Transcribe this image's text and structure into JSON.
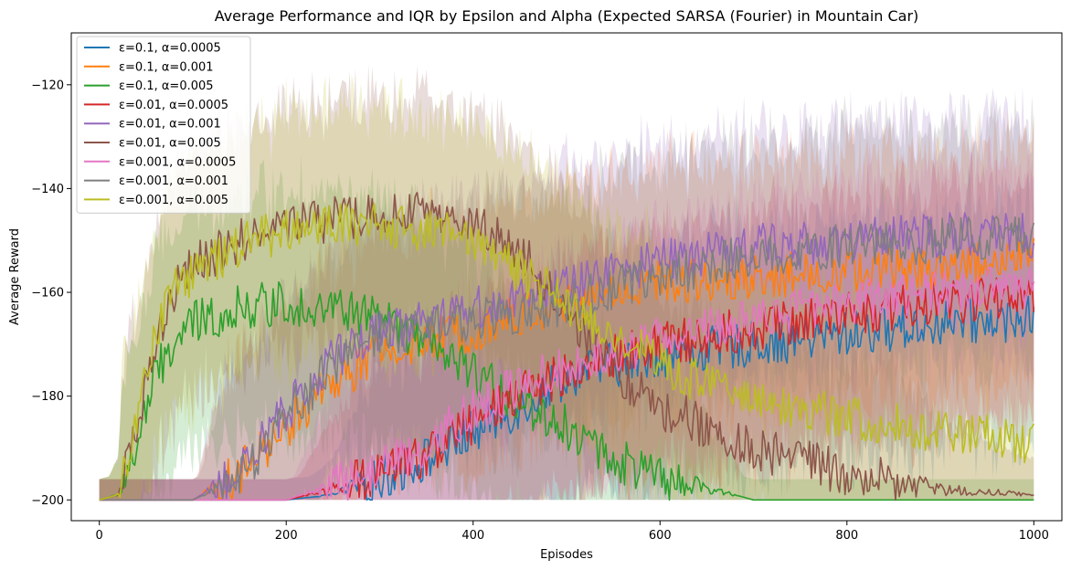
{
  "chart_data": {
    "type": "line",
    "title": "Average Performance and IQR by Epsilon and Alpha (Expected SARSA (Fourier) in Mountain Car)",
    "xlabel": "Episodes",
    "ylabel": "Average Reward",
    "xlim": [
      -30,
      1030
    ],
    "ylim": [
      -204,
      -110
    ],
    "xticks": [
      0,
      200,
      400,
      600,
      800,
      1000
    ],
    "yticks": [
      -200,
      -180,
      -160,
      -140,
      -120
    ],
    "xtick_labels": [
      "0",
      "200",
      "400",
      "600",
      "800",
      "1000"
    ],
    "ytick_labels": [
      "−200",
      "−180",
      "−160",
      "−140",
      "−120"
    ],
    "grid": false,
    "legend_position": "upper-left",
    "iqr_bands": true,
    "series": [
      {
        "name": "ε=0.1, α=0.0005",
        "color": "#1f77b4",
        "x": [
          0,
          100,
          200,
          250,
          300,
          350,
          400,
          450,
          500,
          600,
          700,
          800,
          900,
          1000
        ],
        "y": [
          -200,
          -200,
          -200,
          -199,
          -196,
          -192,
          -187,
          -182,
          -176,
          -172,
          -170,
          -168,
          -166,
          -165
        ]
      },
      {
        "name": "ε=0.1, α=0.001",
        "color": "#ff7f0e",
        "x": [
          0,
          100,
          150,
          200,
          250,
          300,
          400,
          500,
          600,
          700,
          800,
          900,
          1000
        ],
        "y": [
          -200,
          -200,
          -195,
          -186,
          -177,
          -172,
          -167,
          -162,
          -158,
          -157,
          -156,
          -155,
          -153
        ]
      },
      {
        "name": "ε=0.1, α=0.005",
        "color": "#2ca02c",
        "x": [
          0,
          20,
          40,
          60,
          80,
          100,
          150,
          200,
          250,
          300,
          350,
          400,
          450,
          500,
          550,
          600,
          650,
          680,
          700,
          1000
        ],
        "y": [
          -200,
          -199,
          -190,
          -176,
          -170,
          -166,
          -163,
          -162,
          -163,
          -165,
          -170,
          -176,
          -181,
          -186,
          -192,
          -196,
          -198,
          -199,
          -200,
          -200
        ]
      },
      {
        "name": "ε=0.01, α=0.0005",
        "color": "#d62728",
        "x": [
          0,
          100,
          200,
          250,
          300,
          350,
          400,
          450,
          500,
          600,
          700,
          800,
          900,
          1000
        ],
        "y": [
          -200,
          -200,
          -200,
          -198,
          -195,
          -191,
          -185,
          -180,
          -175,
          -170,
          -167,
          -164,
          -162,
          -161
        ]
      },
      {
        "name": "ε=0.01, α=0.001",
        "color": "#9467bd",
        "x": [
          0,
          100,
          150,
          200,
          250,
          300,
          400,
          500,
          600,
          700,
          800,
          900,
          1000
        ],
        "y": [
          -200,
          -200,
          -195,
          -183,
          -173,
          -167,
          -163,
          -159,
          -154,
          -151,
          -150,
          -149,
          -149
        ]
      },
      {
        "name": "ε=0.01, α=0.005",
        "color": "#8c564b",
        "x": [
          0,
          20,
          40,
          60,
          80,
          100,
          150,
          200,
          250,
          300,
          350,
          400,
          450,
          500,
          550,
          600,
          700,
          800,
          900,
          1000
        ],
        "y": [
          -200,
          -199,
          -188,
          -170,
          -160,
          -155,
          -150,
          -147,
          -146,
          -145,
          -145,
          -147,
          -152,
          -164,
          -175,
          -182,
          -190,
          -195,
          -198,
          -199
        ]
      },
      {
        "name": "ε=0.001, α=0.0005",
        "color": "#e377c2",
        "x": [
          0,
          100,
          200,
          250,
          300,
          350,
          400,
          450,
          500,
          600,
          700,
          800,
          900,
          1000
        ],
        "y": [
          -200,
          -200,
          -200,
          -197,
          -194,
          -189,
          -183,
          -178,
          -174,
          -169,
          -165,
          -162,
          -160,
          -159
        ]
      },
      {
        "name": "ε=0.001, α=0.001",
        "color": "#7f7f7f",
        "x": [
          0,
          100,
          150,
          200,
          250,
          300,
          400,
          500,
          600,
          700,
          800,
          900,
          1000
        ],
        "y": [
          -200,
          -200,
          -196,
          -184,
          -174,
          -168,
          -165,
          -162,
          -157,
          -153,
          -151,
          -150,
          -149
        ]
      },
      {
        "name": "ε=0.001, α=0.005",
        "color": "#bcbd22",
        "x": [
          0,
          20,
          40,
          60,
          80,
          100,
          150,
          200,
          250,
          300,
          350,
          400,
          450,
          500,
          550,
          600,
          650,
          700,
          800,
          900,
          1000
        ],
        "y": [
          -200,
          -199,
          -186,
          -168,
          -160,
          -156,
          -151,
          -148,
          -147,
          -147,
          -148,
          -150,
          -156,
          -162,
          -168,
          -173,
          -178,
          -180,
          -184,
          -187,
          -189
        ]
      }
    ]
  }
}
